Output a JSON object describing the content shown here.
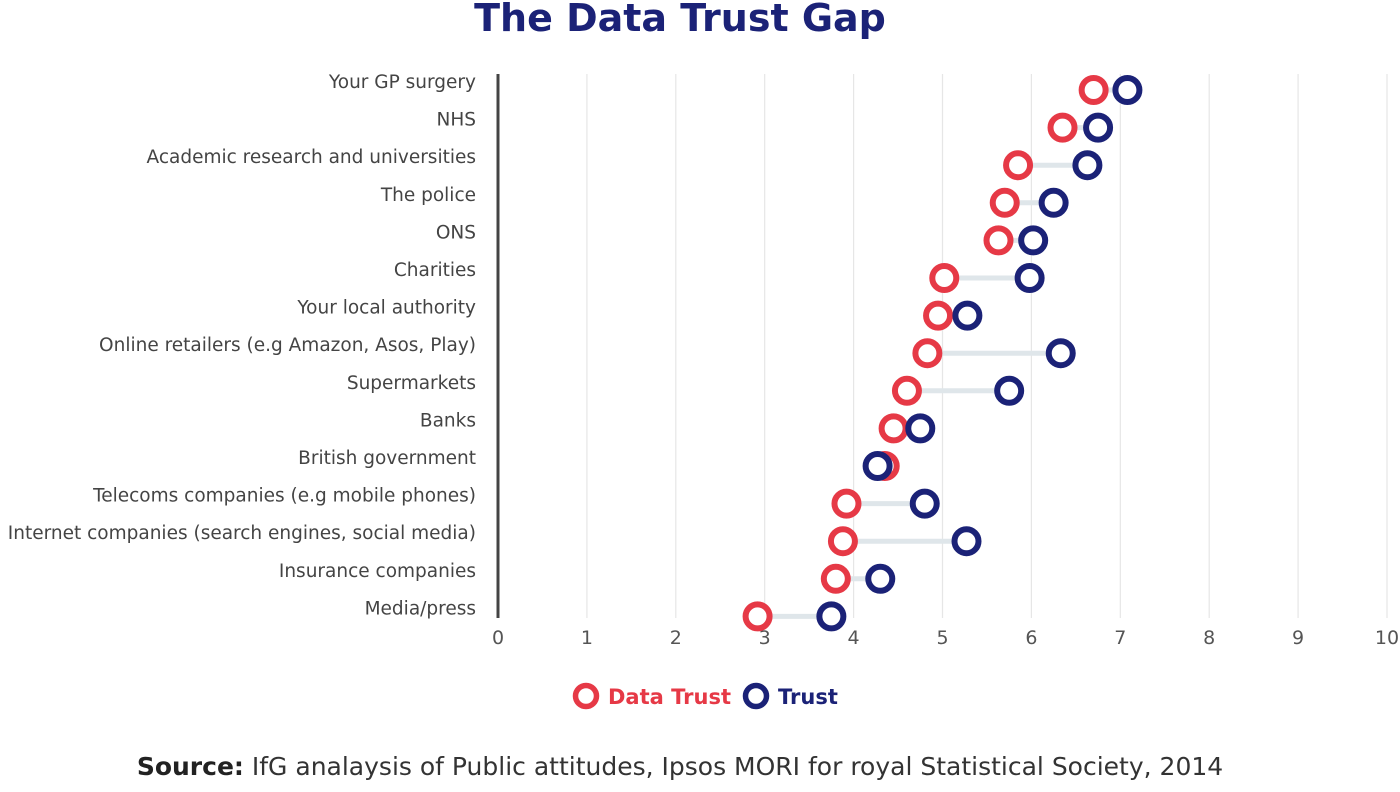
{
  "title": "The Data Trust Gap",
  "legend": {
    "data_trust_label": "Data Trust",
    "trust_label": "Trust"
  },
  "source": {
    "prefix": "Source:",
    "text": "IfG analaysis of Public attitudes, Ipsos MORI for royal Statistical Society, 2014"
  },
  "colors": {
    "data_trust": "#e63946",
    "trust": "#1b2277",
    "connector": "#dfe6ea",
    "grid": "#e6e6e6",
    "axis": "#444444"
  },
  "chart_data": {
    "type": "scatter",
    "title": "The Data Trust Gap",
    "xlabel": "",
    "ylabel": "",
    "xlim": [
      0,
      10
    ],
    "xticks": [
      0,
      1,
      2,
      3,
      4,
      5,
      6,
      7,
      8,
      9,
      10
    ],
    "grid": "vertical",
    "legend_position": "bottom",
    "categories": [
      "Your GP surgery",
      "NHS",
      "Academic research and universities",
      "The police",
      "ONS",
      "Charities",
      "Your local authority",
      "Online retailers (e.g Amazon, Asos, Play)",
      "Supermarkets",
      "Banks",
      "British government",
      "Telecoms companies (e.g mobile phones)",
      "Internet companies (search engines, social media)",
      "Insurance companies",
      "Media/press"
    ],
    "series": [
      {
        "name": "Data Trust",
        "values": [
          6.7,
          6.35,
          5.85,
          5.7,
          5.63,
          5.02,
          4.95,
          4.83,
          4.6,
          4.45,
          4.35,
          3.92,
          3.88,
          3.8,
          2.92
        ]
      },
      {
        "name": "Trust",
        "values": [
          7.08,
          6.75,
          6.63,
          6.25,
          6.02,
          5.98,
          5.28,
          6.33,
          5.75,
          4.75,
          4.27,
          4.8,
          5.27,
          4.3,
          3.75
        ]
      }
    ]
  }
}
